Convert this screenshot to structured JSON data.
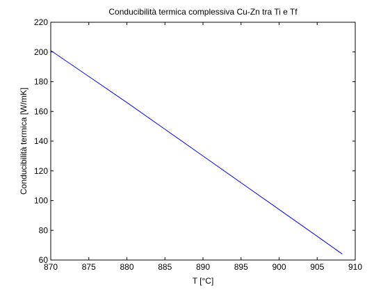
{
  "chart_data": {
    "type": "line",
    "title": "Conducibilità termica complessiva Cu-Zn tra Ti e Tf",
    "xlabel": "T [°C]",
    "ylabel": "Conducibilità termica [W/mK]",
    "xlim": [
      870,
      910
    ],
    "ylim": [
      60,
      220
    ],
    "xticks": [
      870,
      875,
      880,
      885,
      890,
      895,
      900,
      905,
      910
    ],
    "yticks": [
      60,
      80,
      100,
      120,
      140,
      160,
      180,
      200,
      220
    ],
    "grid": false,
    "colors": {
      "line": "#0000ff",
      "axes": "#000000",
      "background": "#ffffff"
    },
    "series": [
      {
        "x": [
          870,
          875,
          880,
          885,
          890,
          895,
          900,
          905,
          908.3
        ],
        "values": [
          201,
          183.5,
          166,
          148,
          130,
          112,
          94,
          76,
          64
        ]
      }
    ]
  }
}
